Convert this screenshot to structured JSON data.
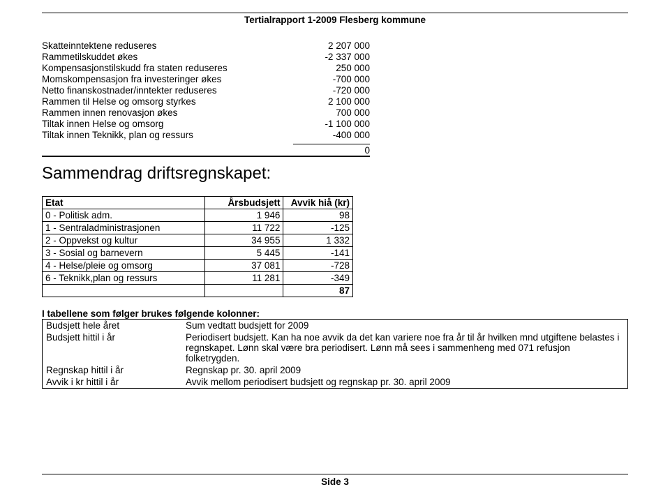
{
  "header": {
    "title": "Tertialrapport 1-2009 Flesberg kommune"
  },
  "adjustments": {
    "rows": [
      {
        "label": "Skatteinntektene reduseres",
        "value": "2 207 000"
      },
      {
        "label": "Rammetilskuddet økes",
        "value": "-2 337 000"
      },
      {
        "label": "Kompensasjonstilskudd fra staten reduseres",
        "value": "250 000"
      },
      {
        "label": "Momskompensasjon fra investeringer økes",
        "value": "-700 000"
      },
      {
        "label": "Netto finanskostnader/inntekter reduseres",
        "value": "-720 000"
      },
      {
        "label": "Rammen til Helse og omsorg styrkes",
        "value": "2 100 000"
      },
      {
        "label": "Rammen innen renovasjon økes",
        "value": "700 000"
      },
      {
        "label": "Tiltak innen Helse og omsorg",
        "value": "-1 100 000"
      },
      {
        "label": "Tiltak innen Teknikk, plan og ressurs",
        "value": "-400 000"
      }
    ],
    "sum": "0"
  },
  "section_heading": "Sammendrag driftsregnskapet:",
  "etat": {
    "headers": {
      "c1": "Etat",
      "c2": "Årsbudsjett",
      "c3": "Avvik hiå (kr)"
    },
    "rows": [
      {
        "name": "0 - Politisk adm.",
        "budget": "1 946",
        "avvik": "98"
      },
      {
        "name": "1 - Sentraladministrasjonen",
        "budget": "11 722",
        "avvik": "-125"
      },
      {
        "name": "2 - Oppvekst og kultur",
        "budget": "34 955",
        "avvik": "1 332"
      },
      {
        "name": "3 - Sosial og barnevern",
        "budget": "5 445",
        "avvik": "-141"
      },
      {
        "name": "4 - Helse/pleie og omsorg",
        "budget": "37 081",
        "avvik": "-728"
      },
      {
        "name": "6 - Teknikk,plan og ressurs",
        "budget": "11 281",
        "avvik": "-349"
      }
    ],
    "total_avvik": "87"
  },
  "desc": {
    "intro": "I tabellene som følger brukes følgende kolonner:",
    "rows": [
      {
        "k": "Budsjett hele året",
        "v": "Sum vedtatt budsjett for 2009"
      },
      {
        "k": "Budsjett hittil i år",
        "v": "Periodisert budsjett. Kan ha noe avvik da det kan variere noe fra år til år hvilken mnd utgiftene belastes i regnskapet. Lønn skal være bra periodisert. Lønn må sees i sammenheng med 071 refusjon folketrygden."
      },
      {
        "k": "Regnskap hittil i år",
        "v": "Regnskap pr. 30. april 2009"
      },
      {
        "k": "Avvik i kr hittil i år",
        "v": "Avvik mellom periodisert budsjett og regnskap pr. 30. april 2009"
      }
    ]
  },
  "footer": {
    "page": "Side 3"
  }
}
